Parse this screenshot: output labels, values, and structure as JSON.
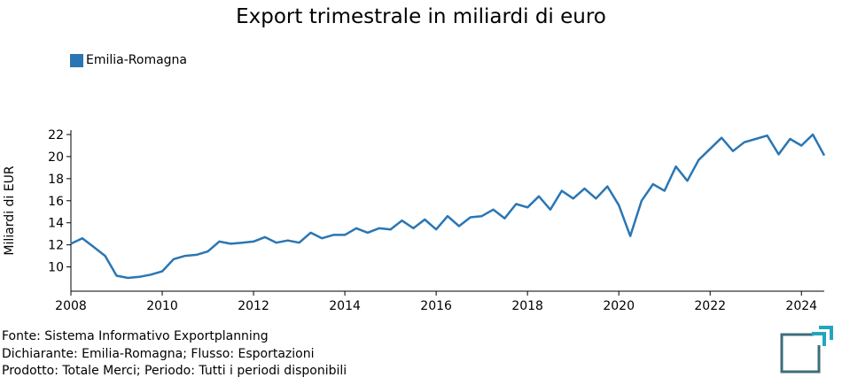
{
  "chart_data": {
    "type": "line",
    "title": "Export trimestrale in miliardi di euro",
    "ylabel": "Miliardi di EUR",
    "xlabel": "",
    "xlim": [
      2008.0,
      2024.5
    ],
    "ylim": [
      7.8,
      22.4
    ],
    "xticks": [
      "2008",
      "2010",
      "2012",
      "2014",
      "2016",
      "2018",
      "2020",
      "2022",
      "2024"
    ],
    "yticks": [
      "10",
      "12",
      "14",
      "16",
      "18",
      "20",
      "22"
    ],
    "grid": false,
    "legend_position": "top-left",
    "series": [
      {
        "name": "Emilia-Romagna",
        "color": "#2a76b4",
        "x": [
          2008.0,
          2008.25,
          2008.5,
          2008.75,
          2009.0,
          2009.25,
          2009.5,
          2009.75,
          2010.0,
          2010.25,
          2010.5,
          2010.75,
          2011.0,
          2011.25,
          2011.5,
          2011.75,
          2012.0,
          2012.25,
          2012.5,
          2012.75,
          2013.0,
          2013.25,
          2013.5,
          2013.75,
          2014.0,
          2014.25,
          2014.5,
          2014.75,
          2015.0,
          2015.25,
          2015.5,
          2015.75,
          2016.0,
          2016.25,
          2016.5,
          2016.75,
          2017.0,
          2017.25,
          2017.5,
          2017.75,
          2018.0,
          2018.25,
          2018.5,
          2018.75,
          2019.0,
          2019.25,
          2019.5,
          2019.75,
          2020.0,
          2020.25,
          2020.5,
          2020.75,
          2021.0,
          2021.25,
          2021.5,
          2021.75,
          2022.0,
          2022.25,
          2022.5,
          2022.75,
          2023.0,
          2023.25,
          2023.5,
          2023.75,
          2024.0,
          2024.25,
          2024.5
        ],
        "y": [
          12.1,
          12.6,
          11.8,
          11.0,
          9.2,
          9.0,
          9.1,
          9.3,
          9.6,
          10.7,
          11.0,
          11.1,
          11.4,
          12.3,
          12.1,
          12.2,
          12.3,
          12.7,
          12.2,
          12.4,
          12.2,
          13.1,
          12.6,
          12.9,
          12.9,
          13.5,
          13.1,
          13.5,
          13.4,
          14.2,
          13.5,
          14.3,
          13.4,
          14.6,
          13.7,
          14.5,
          14.6,
          15.2,
          14.4,
          15.7,
          15.4,
          16.4,
          15.2,
          16.9,
          16.2,
          17.1,
          16.2,
          17.3,
          15.6,
          12.8,
          16.0,
          17.5,
          16.9,
          19.1,
          17.8,
          19.7,
          20.7,
          21.7,
          20.5,
          21.3,
          21.6,
          21.9,
          20.2,
          21.6,
          21.0,
          22.0,
          20.1
        ]
      }
    ]
  },
  "legend": {
    "label": "Emilia-Romagna"
  },
  "footer": {
    "line1": "Fonte: Sistema Informativo Exportplanning",
    "line2": "Dichiarante: Emilia-Romagna; Flusso: Esportazioni",
    "line3": "Prodotto: Totale Merci; Periodo: Tutti i periodi disponibili"
  }
}
